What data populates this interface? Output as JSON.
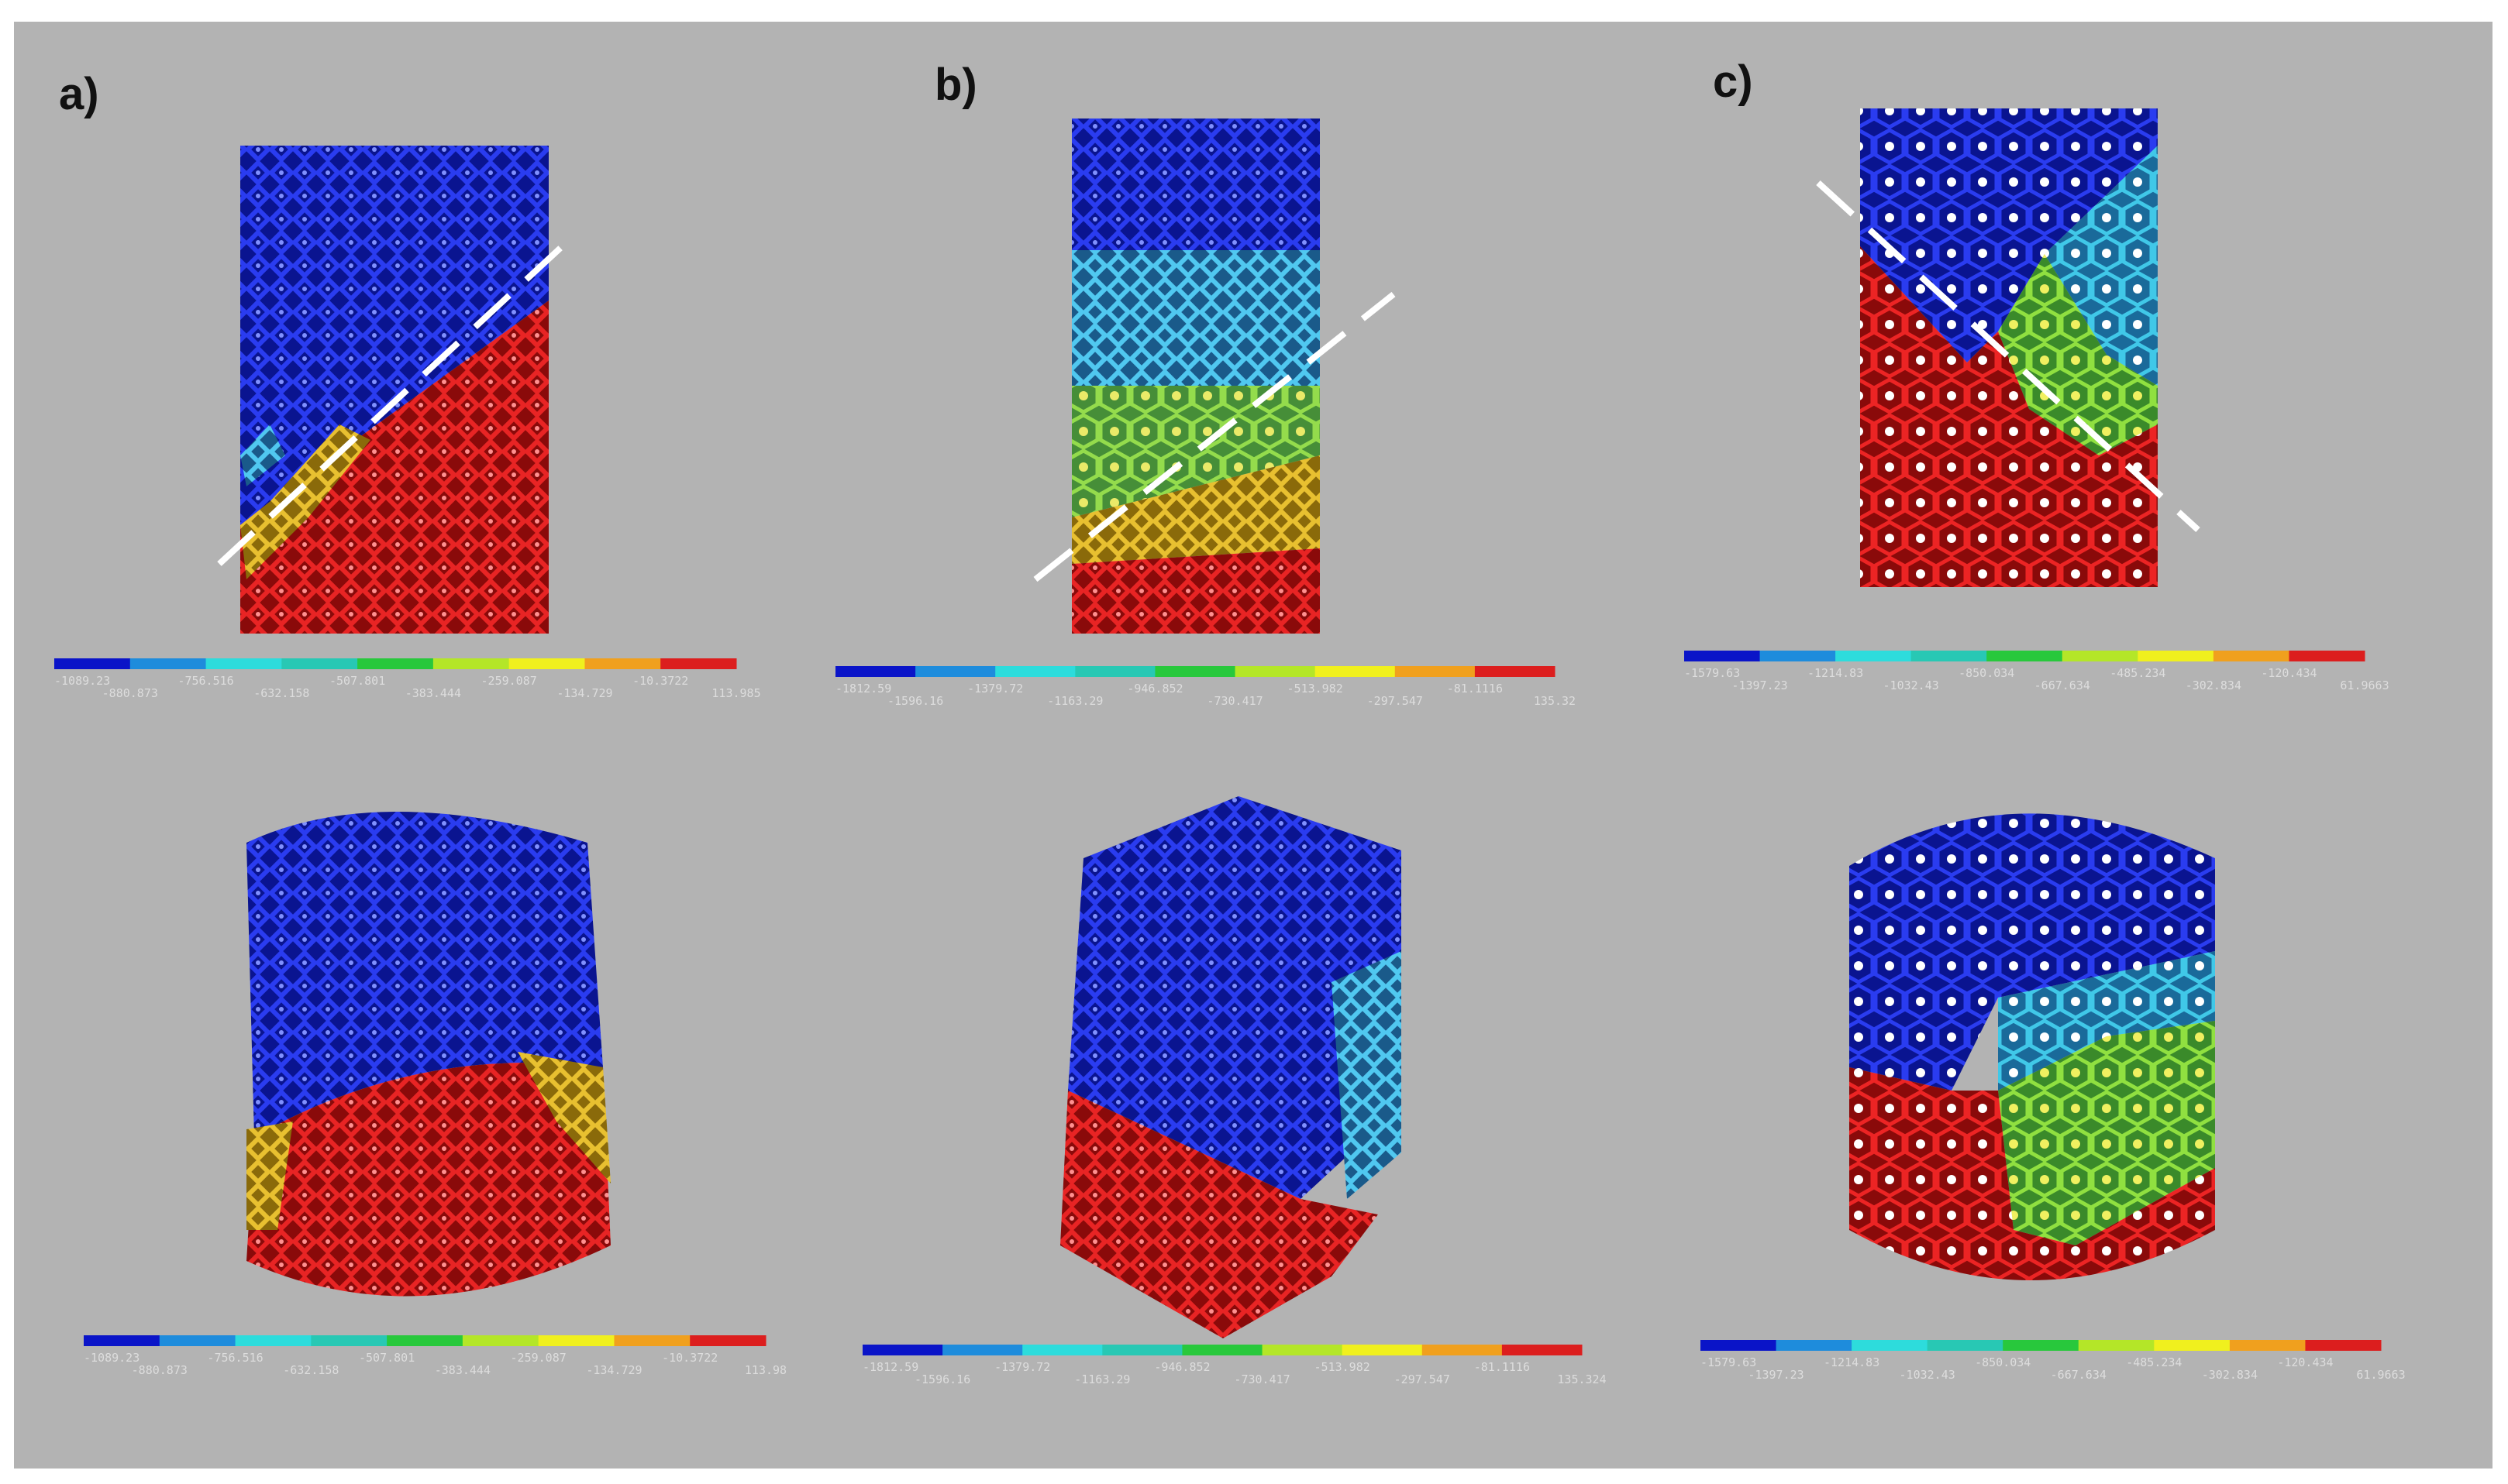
{
  "panels": [
    {
      "label": "a)",
      "colorbar_top": [
        "-1089.23",
        "-880.873",
        "-756.516",
        "-632.158",
        "-507.801",
        "-383.444",
        "-259.087",
        "-134.729",
        "-10.3722",
        "113.985"
      ],
      "colorbar_bottom": [
        "-1089.23",
        "-880.873",
        "-756.516",
        "-632.158",
        "-507.801",
        "-383.444",
        "-259.087",
        "-134.729",
        "-10.3722",
        "113.98"
      ]
    },
    {
      "label": "b)",
      "colorbar_top": [
        "-1812.59",
        "-1596.16",
        "-1379.72",
        "-1163.29",
        "-946.852",
        "-730.417",
        "-513.982",
        "-297.547",
        "-81.1116",
        "135.32"
      ],
      "colorbar_bottom": [
        "-1812.59",
        "-1596.16",
        "-1379.72",
        "-1163.29",
        "-946.852",
        "-730.417",
        "-513.982",
        "-297.547",
        "-81.1116",
        "135.324"
      ]
    },
    {
      "label": "c)",
      "colorbar_top": [
        "-1579.63",
        "-1397.23",
        "-1214.83",
        "-1032.43",
        "-850.034",
        "-667.634",
        "-485.234",
        "-302.834",
        "-120.434",
        "61.9663"
      ],
      "colorbar_bottom": [
        "-1579.63",
        "-1397.23",
        "-1214.83",
        "-1032.43",
        "-850.034",
        "-667.634",
        "-485.234",
        "-302.834",
        "-120.434",
        "61.9663"
      ]
    }
  ],
  "colors": {
    "background": "#b3b3b3",
    "scale": [
      "#0a14c8",
      "#1e8cdc",
      "#2ddcdc",
      "#28c8b4",
      "#28c83c",
      "#b4e628",
      "#f0f01e",
      "#f0a01e",
      "#dc1e1e"
    ],
    "lattice_blue": "#1020c0",
    "lattice_red": "#d01818",
    "lattice_yellow": "#d4b020",
    "lattice_cyan": "#40b8d8",
    "lattice_green": "#40c050",
    "fracture_line": "#ffffff"
  }
}
